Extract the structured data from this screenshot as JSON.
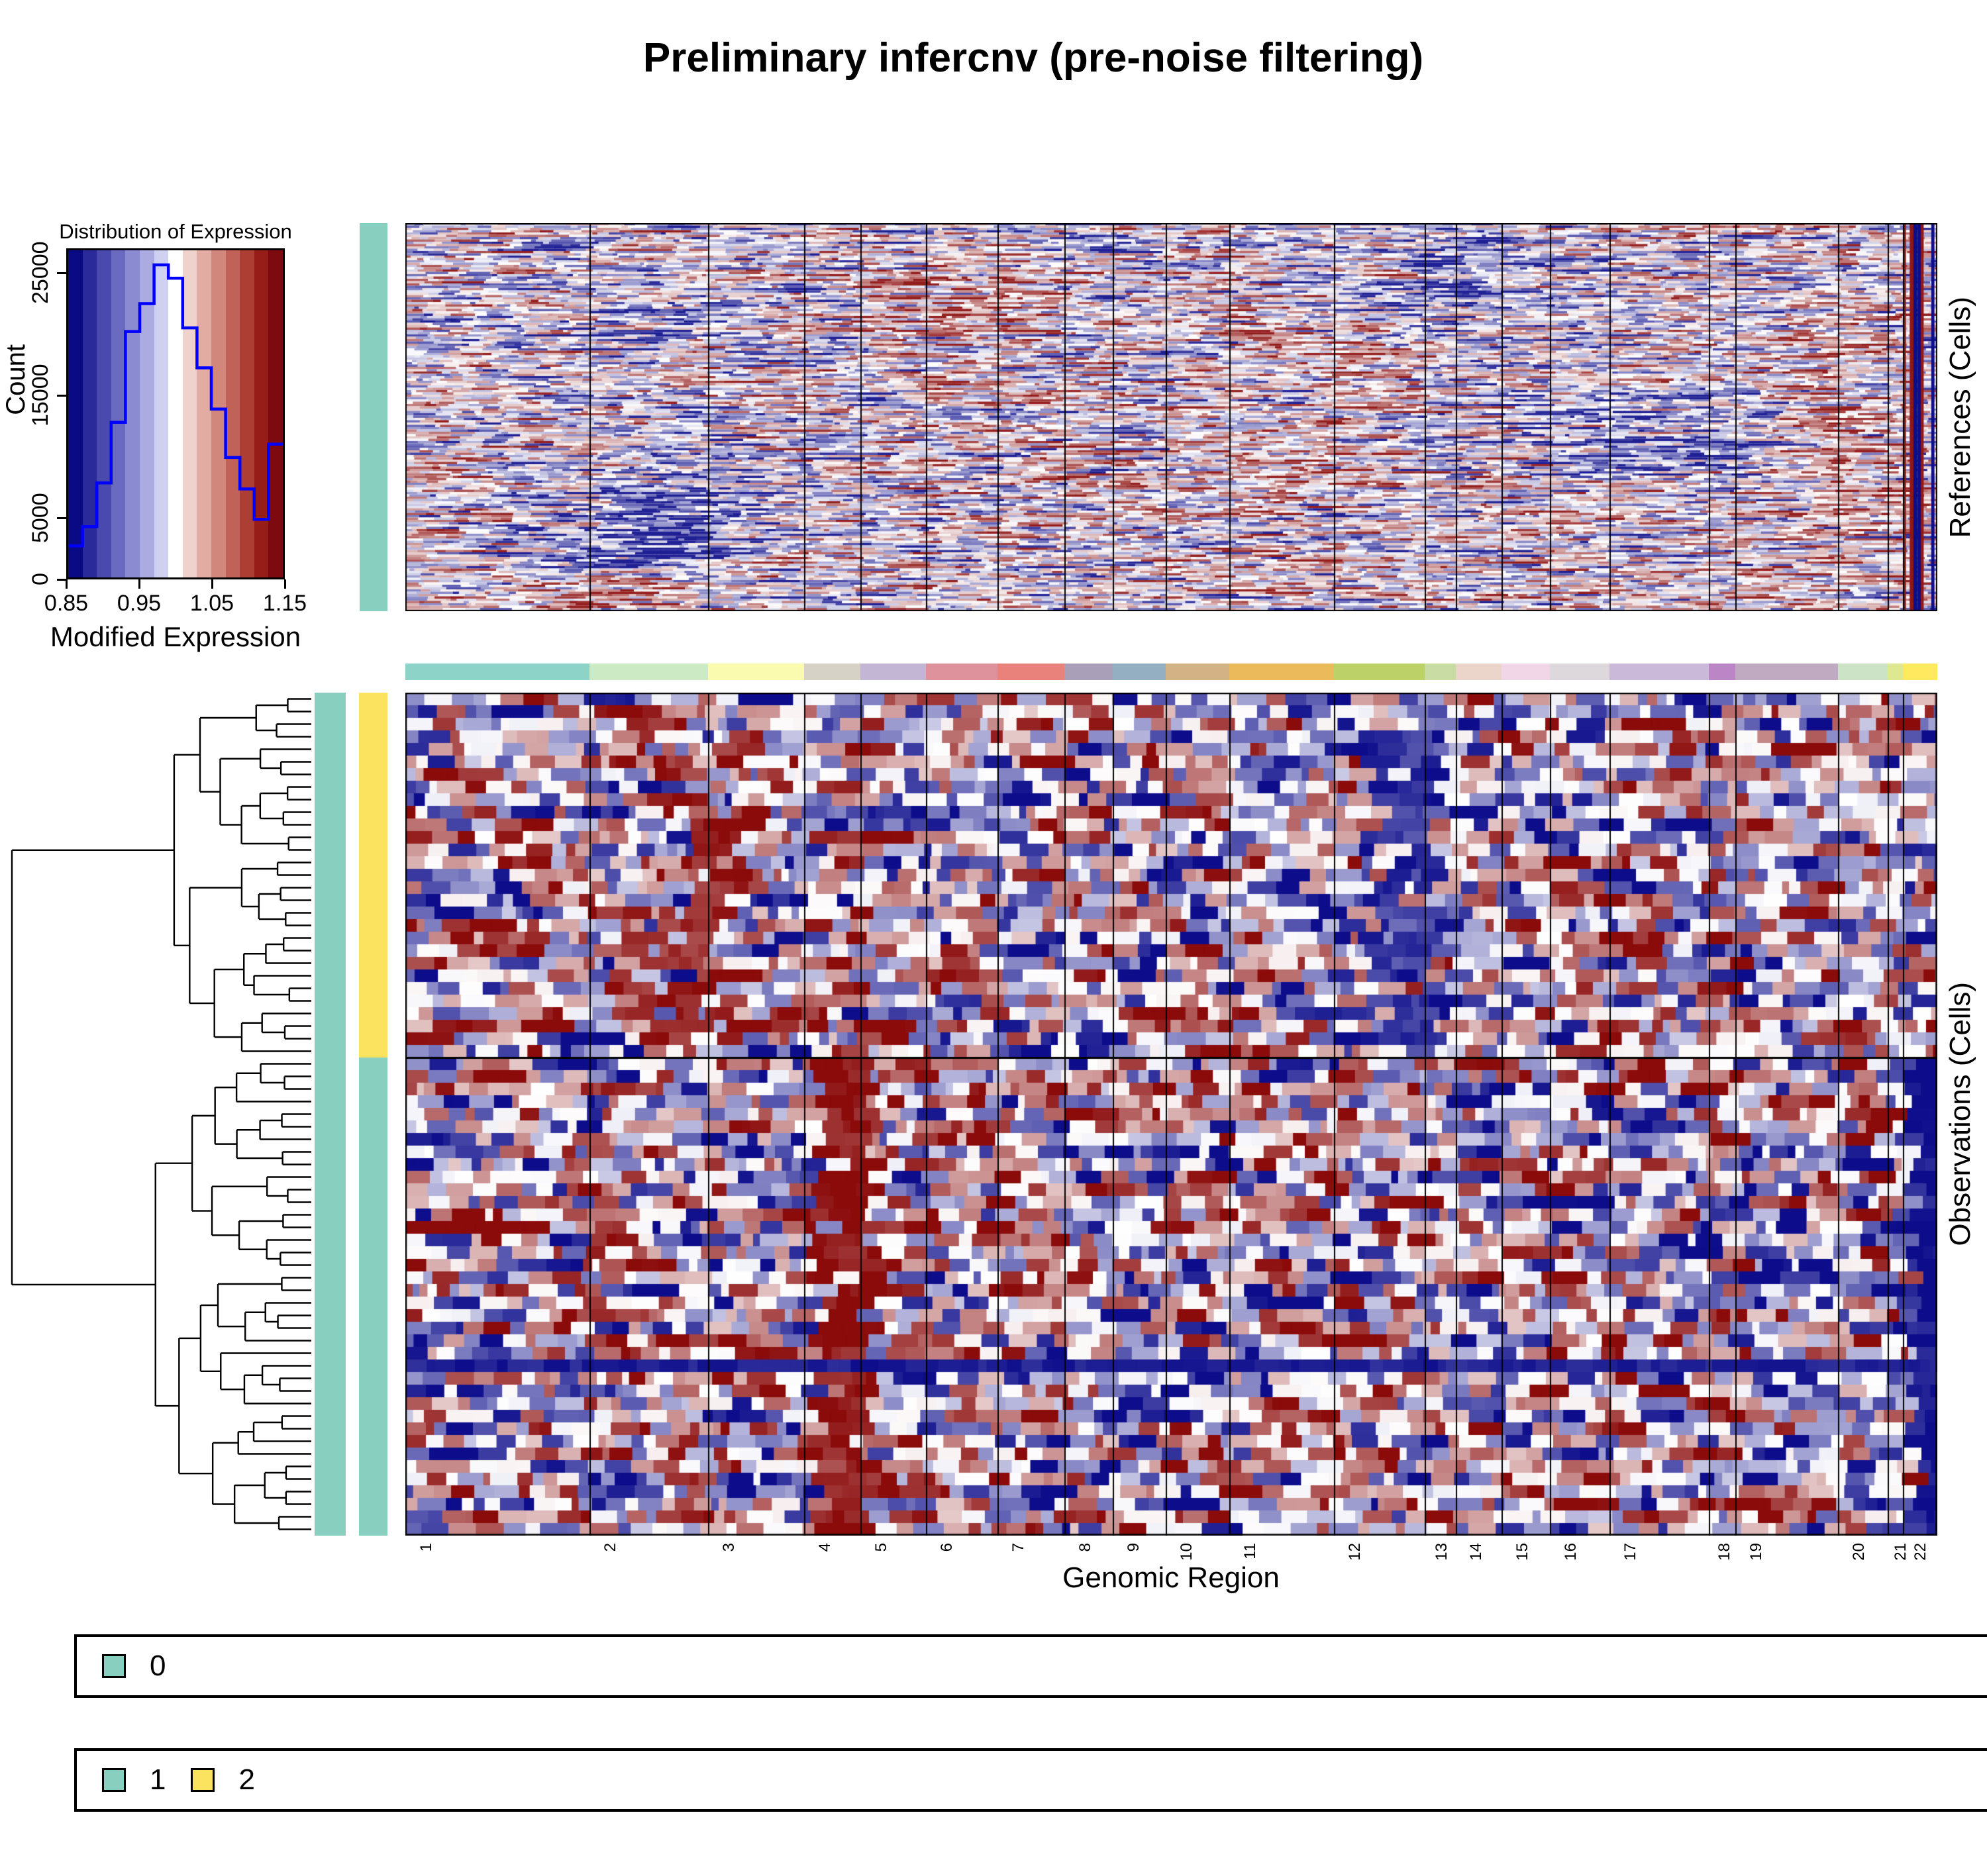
{
  "title": "Preliminary infercnv (pre-noise filtering)",
  "chart_data": {
    "type": "heatmap",
    "title": "Preliminary infercnv (pre-noise filtering)",
    "xlabel": "Genomic Region",
    "panels": [
      {
        "name": "references",
        "ylabel": "References (Cells)",
        "rows": 168,
        "texture": "fine-streaks"
      },
      {
        "name": "observations",
        "ylabel": "Observations (Cells)",
        "rows": 67,
        "texture": "coarse-blocks",
        "row_dendrogram": true
      }
    ],
    "colormap": {
      "low": "#0D0D8C",
      "mid": "#FFFFFF",
      "high": "#8B0A0A",
      "low_label": 0.85,
      "mid_label": 1.0,
      "high_label": 1.15
    },
    "chromosomes": [
      {
        "name": "1",
        "start": 612,
        "end": 890,
        "color": "#8DD3C7"
      },
      {
        "name": "2",
        "start": 890,
        "end": 1069,
        "color": "#CCEBC5"
      },
      {
        "name": "3",
        "start": 1069,
        "end": 1214,
        "color": "#FBFBB0"
      },
      {
        "name": "4",
        "start": 1214,
        "end": 1299,
        "color": "#D6D3C6"
      },
      {
        "name": "5",
        "start": 1299,
        "end": 1398,
        "color": "#C2B6D4"
      },
      {
        "name": "6",
        "start": 1398,
        "end": 1506,
        "color": "#DE929C"
      },
      {
        "name": "7",
        "start": 1506,
        "end": 1607,
        "color": "#E8827A"
      },
      {
        "name": "8",
        "start": 1607,
        "end": 1680,
        "color": "#A99FB9"
      },
      {
        "name": "9",
        "start": 1680,
        "end": 1760,
        "color": "#94AFC1"
      },
      {
        "name": "10",
        "start": 1760,
        "end": 1856,
        "color": "#D3B286"
      },
      {
        "name": "11",
        "start": 1856,
        "end": 2014,
        "color": "#EABA5B"
      },
      {
        "name": "12",
        "start": 2014,
        "end": 2151,
        "color": "#BCD268"
      },
      {
        "name": "13",
        "start": 2151,
        "end": 2198,
        "color": "#C9DCA3"
      },
      {
        "name": "14",
        "start": 2198,
        "end": 2267,
        "color": "#EBD4CA"
      },
      {
        "name": "15",
        "start": 2267,
        "end": 2340,
        "color": "#F0D6E6"
      },
      {
        "name": "16",
        "start": 2340,
        "end": 2430,
        "color": "#DCD8DB"
      },
      {
        "name": "17",
        "start": 2430,
        "end": 2580,
        "color": "#CBB9D9"
      },
      {
        "name": "18",
        "start": 2580,
        "end": 2620,
        "color": "#BB85C6"
      },
      {
        "name": "19",
        "start": 2620,
        "end": 2775,
        "color": "#C0AAC1"
      },
      {
        "name": "20",
        "start": 2775,
        "end": 2850,
        "color": "#CDE3C5"
      },
      {
        "name": "21",
        "start": 2850,
        "end": 2873,
        "color": "#DDE890"
      },
      {
        "name": "22",
        "start": 2873,
        "end": 2925,
        "color": "#FFE95E"
      }
    ],
    "expression_histogram": {
      "type": "line",
      "title": "Distribution of Expression",
      "xlabel": "Modified Expression",
      "ylabel": "Count",
      "x_ticks": [
        "0.85",
        "0.95",
        "1.05",
        "1.15"
      ],
      "y_ticks": [
        "0",
        "5000",
        "15000",
        "25000"
      ],
      "bin_start": 0.85,
      "bin_width": 0.02,
      "counts": [
        2600,
        4200,
        7800,
        12800,
        20300,
        22600,
        25800,
        24700,
        20600,
        17300,
        13900,
        9900,
        7300,
        4800,
        11000
      ],
      "ylim": [
        0,
        27000
      ],
      "line_color": "#0000FF",
      "gradient_colors": [
        "#0A0A85",
        "#2A2A9A",
        "#4A4AAE",
        "#6A6AC1",
        "#8B8BD1",
        "#ABABE1",
        "#D0D0F0",
        "#FFFFFF",
        "#F0D2CC",
        "#E2ACA3",
        "#D2877C",
        "#C06257",
        "#AC3E34",
        "#961D18",
        "#7D0A0E"
      ]
    },
    "annotation_groups": {
      "reference_group": {
        "label": "0",
        "color": "#89CFBF"
      },
      "observation_subclusters": [
        {
          "label": "2",
          "color": "#FBE360",
          "rows": 29
        },
        {
          "label": "1",
          "color": "#89CFBF",
          "rows": 38
        }
      ]
    },
    "cnv_highlights": [
      {
        "panel": "observations",
        "cluster": "1",
        "chr": "4",
        "state": "gain-dark-red"
      },
      {
        "panel": "observations",
        "cluster": "1",
        "chr": "22",
        "state": "loss-dark-blue"
      },
      {
        "panel": "observations",
        "cluster": "2",
        "chr": "12-13",
        "state": "loss-blue-band"
      },
      {
        "panel": "observations",
        "cluster": "2",
        "chr": "3",
        "state": "gain-red-band"
      },
      {
        "panel": "references",
        "cluster": "0",
        "chr": "22",
        "state": "striped-blue"
      }
    ]
  },
  "labels": {
    "references_axis": "References (Cells)",
    "observations_axis": "Observations (Cells)",
    "genomic_region": "Genomic Region",
    "expr_title": "Distribution of Expression",
    "expr_xlabel": "Modified Expression",
    "expr_ylabel": "Count"
  },
  "legend_boxes": [
    {
      "items": [
        {
          "label": "0",
          "color": "#89CFBF"
        }
      ]
    },
    {
      "items": [
        {
          "label": "1",
          "color": "#89CFBF"
        },
        {
          "label": "2",
          "color": "#FBE360"
        }
      ]
    }
  ],
  "render": {
    "seed_refs": 1337,
    "seed_obs": 4242,
    "seed_tree": 77,
    "obs_row_height": 19,
    "refs_row_height": 3.5
  }
}
